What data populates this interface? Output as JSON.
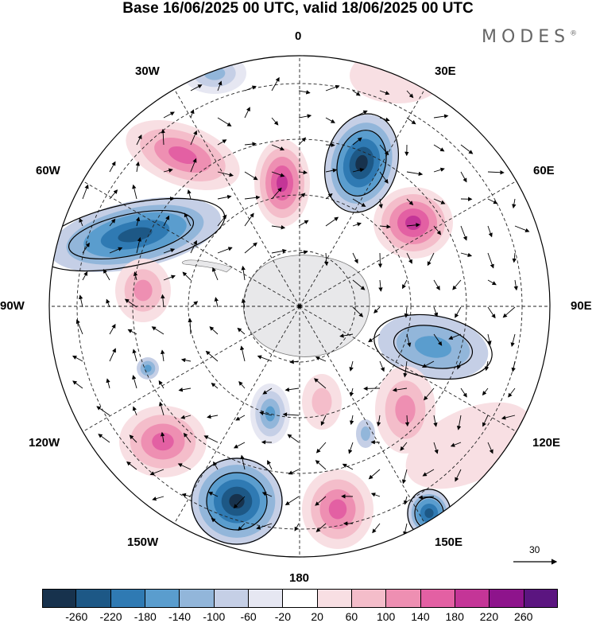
{
  "title": "Base 16/06/2025 00 UTC, valid 18/06/2025 00 UTC",
  "logo": "MODES",
  "logo_mark": "®",
  "lon_labels": {
    "n0": "0",
    "e30": "30E",
    "e60": "60E",
    "e90": "90E",
    "e120": "120E",
    "e150": "150E",
    "s180": "180",
    "w150": "150W",
    "w120": "120W",
    "w90": "90W",
    "w60": "60W",
    "w30": "30W"
  },
  "reference_vector": {
    "label": "30"
  },
  "colorbar": {
    "colors": [
      "#17324d",
      "#1d5886",
      "#2f7ab3",
      "#5a9dce",
      "#92b6da",
      "#c5cfe6",
      "#e6e7f2",
      "#ffffff",
      "#f8dfe3",
      "#f4bdca",
      "#ee8fb2",
      "#e360a3",
      "#c43597",
      "#8e148c",
      "#5b1580"
    ],
    "ticks": [
      "-260",
      "-220",
      "-180",
      "-140",
      "-100",
      "-60",
      "-20",
      "20",
      "60",
      "100",
      "140",
      "180",
      "220",
      "260"
    ]
  }
}
